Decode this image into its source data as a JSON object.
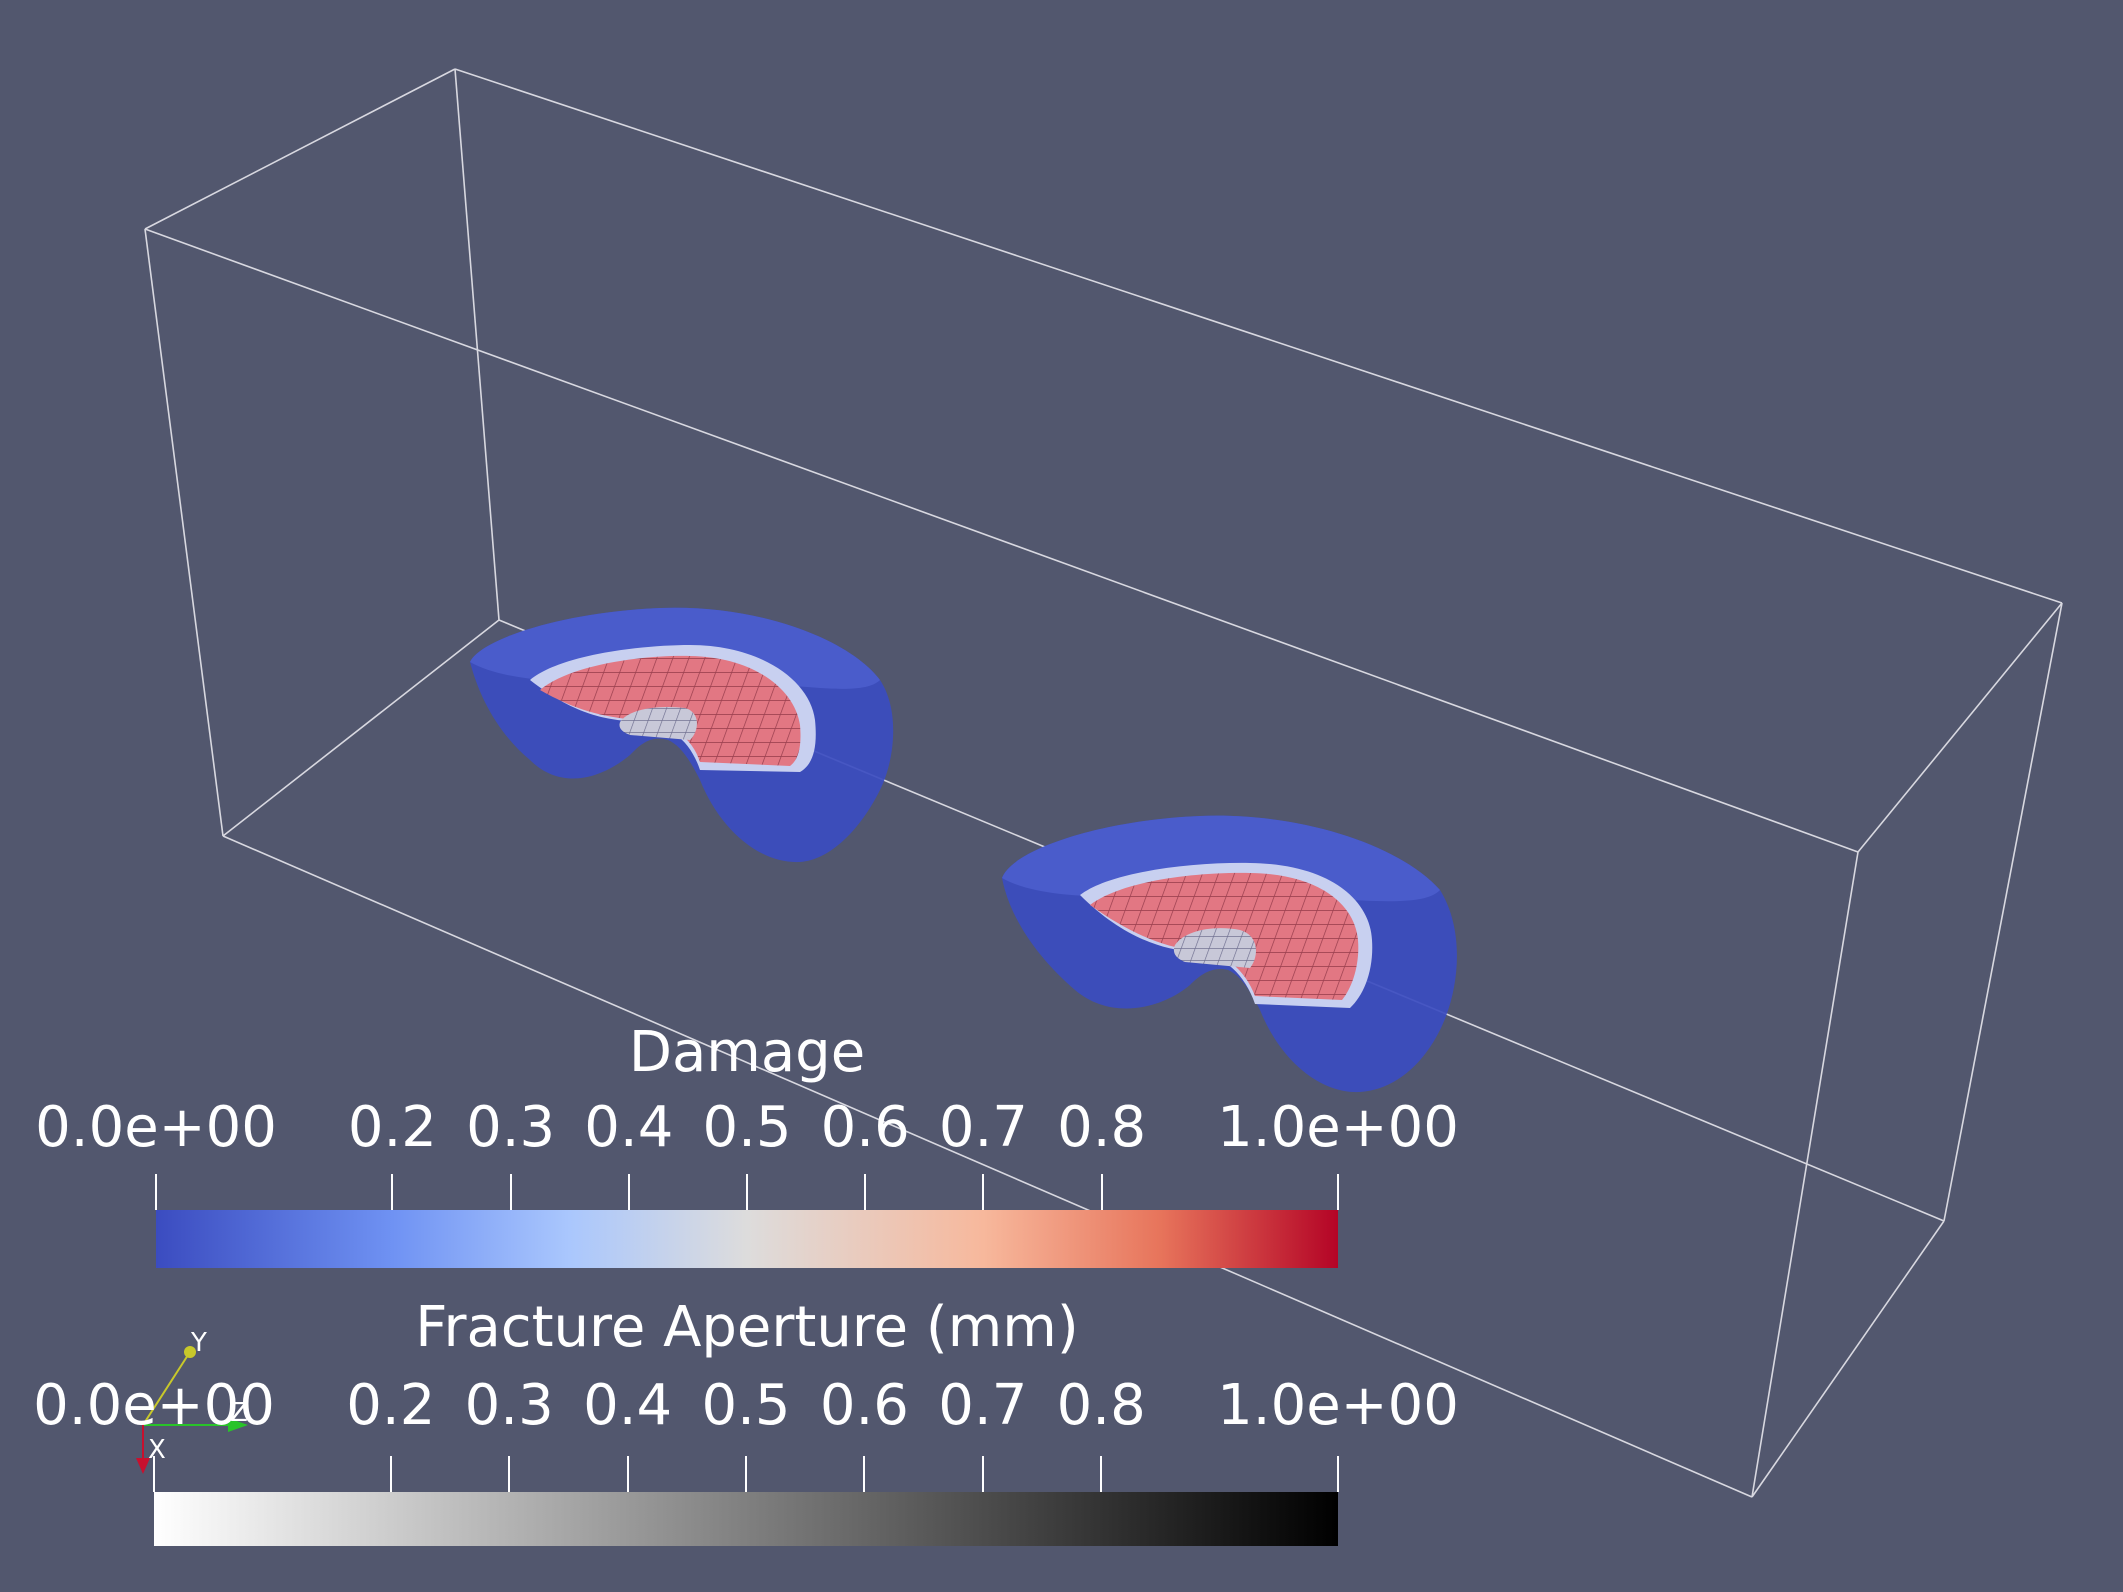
{
  "render_view": {
    "background": "#52576e",
    "outline_color": "#d8d8e0"
  },
  "colorbars": {
    "damage": {
      "title": "Damage",
      "colormap": "Cool to Warm",
      "range": [
        0.0,
        1.0
      ],
      "ticks": [
        "0.0e+00",
        "0.2",
        "0.3",
        "0.4",
        "0.5",
        "0.6",
        "0.7",
        "0.8",
        "1.0e+00"
      ],
      "tick_values": [
        0.0,
        0.2,
        0.3,
        0.4,
        0.5,
        0.6,
        0.7,
        0.8,
        1.0
      ]
    },
    "aperture": {
      "title": "Fracture Aperture (mm)",
      "colormap": "Grayscale (white to black)",
      "range": [
        0.0,
        1.0
      ],
      "ticks": [
        "0.0e+00",
        "0.2",
        "0.3",
        "0.4",
        "0.5",
        "0.6",
        "0.7",
        "0.8",
        "1.0e+00"
      ],
      "tick_values": [
        0.0,
        0.2,
        0.3,
        0.4,
        0.5,
        0.6,
        0.7,
        0.8,
        1.0
      ]
    }
  },
  "orientation_axes": {
    "labels": {
      "x": "X",
      "y": "Y",
      "z": "Z"
    },
    "colors": {
      "x": "#c8102e",
      "y": "#c8c82a",
      "z": "#29c429"
    }
  }
}
